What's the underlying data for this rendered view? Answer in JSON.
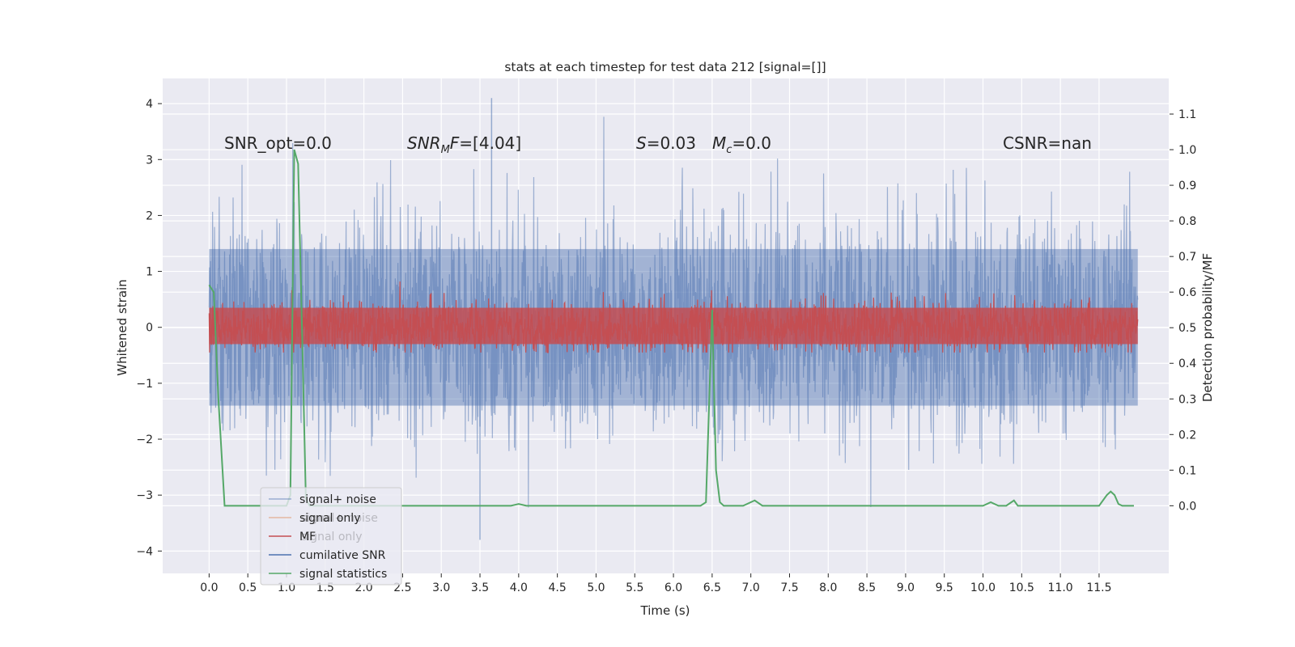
{
  "chart_data": {
    "type": "line",
    "title": "stats at each timestep for test data 212 [signal=[]]",
    "xlabel": "Time (s)",
    "ylabel": "Whitened strain",
    "y2label": "Detection probability/MF",
    "xlim": [
      -0.6,
      12.4
    ],
    "ylim": [
      -4.4,
      4.45
    ],
    "y2lim": [
      -0.19,
      1.2
    ],
    "x_ticks": [
      "0.0",
      "0.5",
      "1.0",
      "1.5",
      "2.0",
      "2.5",
      "3.0",
      "3.5",
      "4.0",
      "4.5",
      "5.0",
      "5.5",
      "6.0",
      "6.5",
      "7.0",
      "7.5",
      "8.0",
      "8.5",
      "9.0",
      "9.5",
      "10.0",
      "10.5",
      "11.0",
      "11.5"
    ],
    "y_ticks": [
      "4",
      "3",
      "2",
      "1",
      "0",
      "−1",
      "−2",
      "−3",
      "−4"
    ],
    "y2_ticks": [
      "1.1",
      "1.0",
      "0.9",
      "0.8",
      "0.7",
      "0.6",
      "0.5",
      "0.4",
      "0.3",
      "0.2",
      "0.1",
      "0.0"
    ],
    "grid": true,
    "legend_position": "lower-left",
    "annotations": [
      {
        "text": "SNR_opt=0.0",
        "x": 0.2,
        "y": 3.3
      },
      {
        "text": "SNRMF=[4.04]",
        "x": 2.6,
        "y": 3.3
      },
      {
        "text": "S=0.03",
        "x": 5.6,
        "y": 3.3
      },
      {
        "text": "Mc=0.0",
        "x": 6.6,
        "y": 3.3
      },
      {
        "text": "CSNR=nan",
        "x": 10.4,
        "y": 3.3
      }
    ],
    "legend": [
      {
        "label": "signal+ noise",
        "color": "#4C72B0",
        "alpha": 0.5
      },
      {
        "label": "signal only",
        "color": "#DD8452",
        "alpha": 0.5
      },
      {
        "label": "MF",
        "color": "#C44E52",
        "alpha": 1
      },
      {
        "label": "cumilative SNR",
        "color": "#4C72B0",
        "alpha": 1
      },
      {
        "label": "signal statistics",
        "color": "#55A868",
        "alpha": 1
      }
    ],
    "legend_ghost_text": [
      "signal+ noise",
      "signal only"
    ],
    "series": [
      {
        "name": "signal+ noise",
        "axis": "left",
        "t_start": 0.0,
        "t_end": 12.0,
        "typical_high": 1.4,
        "typical_low": -1.4,
        "peak_max": 4.1,
        "peak_min": -3.8,
        "color": "#4C72B0",
        "alpha": 0.5
      },
      {
        "name": "MF",
        "axis": "left",
        "t_start": 0.0,
        "t_end": 12.0,
        "typical_high": 0.35,
        "typical_low": -0.3,
        "peak_max": 0.82,
        "peak_min": -0.45,
        "color": "#C44E52"
      },
      {
        "name": "signal statistics",
        "axis": "right",
        "color": "#55A868",
        "x": [
          0.0,
          0.06,
          0.12,
          0.2,
          0.5,
          0.8,
          1.0,
          1.05,
          1.1,
          1.15,
          1.2,
          1.25,
          1.3,
          2.0,
          3.0,
          3.9,
          4.0,
          4.1,
          5.0,
          6.0,
          6.35,
          6.42,
          6.5,
          6.55,
          6.6,
          6.65,
          6.7,
          6.9,
          7.05,
          7.15,
          8.0,
          9.0,
          10.0,
          10.1,
          10.2,
          10.3,
          10.4,
          10.45,
          10.5,
          11.0,
          11.5,
          11.6,
          11.65,
          11.7,
          11.75,
          11.8,
          11.9,
          11.95
        ],
        "y": [
          0.62,
          0.6,
          0.3,
          0.0,
          0.0,
          0.0,
          0.0,
          0.03,
          1.0,
          0.96,
          0.5,
          0.02,
          0.0,
          0.0,
          0.0,
          0.0,
          0.005,
          0.0,
          0.0,
          0.0,
          0.0,
          0.01,
          0.55,
          0.1,
          0.01,
          0.0,
          0.0,
          0.0,
          0.015,
          0.0,
          0.0,
          0.0,
          0.0,
          0.01,
          0.0,
          0.0,
          0.015,
          0.0,
          0.0,
          0.0,
          0.0,
          0.03,
          0.04,
          0.03,
          0.005,
          0.0,
          0.0,
          0.0
        ]
      }
    ]
  }
}
